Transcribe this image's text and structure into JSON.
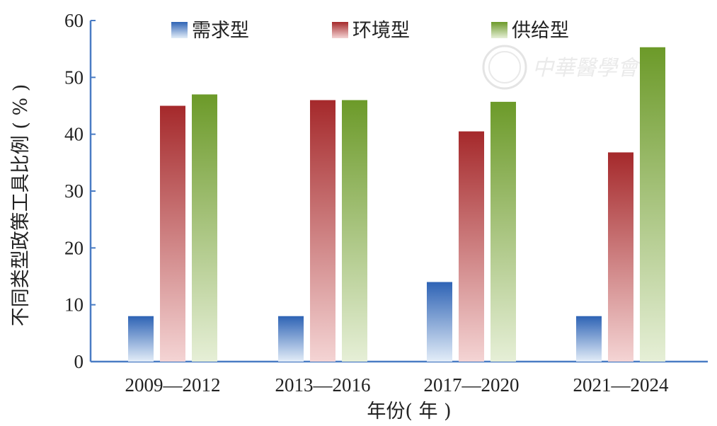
{
  "chart_data": {
    "type": "bar",
    "categories": [
      "2009—2012",
      "2013—2016",
      "2017—2020",
      "2021—2024"
    ],
    "series": [
      {
        "name": "需求型",
        "values": [
          8,
          8,
          14,
          8
        ],
        "color": "#2e63b5",
        "color_light": "#e3edf8"
      },
      {
        "name": "环境型",
        "values": [
          45,
          46,
          40.5,
          36.8
        ],
        "color": "#a5292b",
        "color_light": "#f4d4d4"
      },
      {
        "name": "供给型",
        "values": [
          47,
          46,
          45.7,
          55.3
        ],
        "color": "#6c9a29",
        "color_light": "#e6efd7"
      }
    ],
    "xlabel": "年份( 年 )",
    "ylabel": "不同类型政策工具比例 ( % )",
    "ylim": [
      0,
      60
    ],
    "yticks": [
      0,
      10,
      20,
      30,
      40,
      50,
      60
    ],
    "legend_position": "top",
    "grid": false,
    "axis_color": "#4a7cc4"
  },
  "watermark": {
    "text": "中華醫學會"
  }
}
